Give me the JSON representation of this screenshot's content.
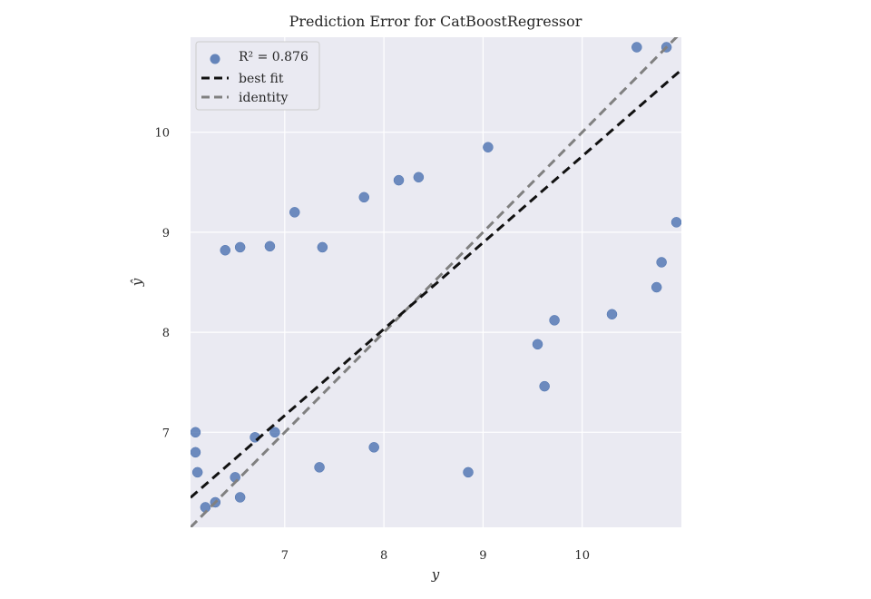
{
  "chart_data": {
    "type": "scatter",
    "title": "Prediction Error for CatBoostRegressor",
    "xlabel": "y",
    "ylabel": "ŷ",
    "xlim": [
      6.05,
      11.0
    ],
    "ylim": [
      6.05,
      10.95
    ],
    "xticks": [
      7,
      8,
      9,
      10
    ],
    "yticks": [
      7,
      8,
      9,
      10
    ],
    "grid": true,
    "legend_position": "top-left",
    "legend": [
      {
        "key": "points",
        "label": "R² = 0.876"
      },
      {
        "key": "best_fit",
        "label": "best fit"
      },
      {
        "key": "identity",
        "label": "identity"
      }
    ],
    "r2": 0.876,
    "best_fit": {
      "slope": 0.864,
      "intercept": 1.12
    },
    "identity": {
      "slope": 1.0,
      "intercept": 0.0
    },
    "colors": {
      "points": "#4c72b0",
      "best_fit": "#111111",
      "identity": "#808080",
      "background": "#eaeaf2",
      "grid": "#ffffff"
    },
    "series": [
      {
        "name": "points",
        "x": [
          6.4,
          6.55,
          6.85,
          7.1,
          7.38,
          7.8,
          8.15,
          8.35,
          9.55,
          9.62,
          9.72,
          10.3,
          10.75,
          10.8,
          10.95,
          8.85,
          7.35,
          7.9,
          6.55,
          6.1,
          6.1,
          6.12,
          6.2,
          6.3,
          6.5,
          6.7,
          6.9,
          9.05,
          10.55,
          10.85
        ],
        "y": [
          8.82,
          8.85,
          8.86,
          9.2,
          8.85,
          9.35,
          9.52,
          9.55,
          7.88,
          7.46,
          8.12,
          8.18,
          8.45,
          8.7,
          9.1,
          6.6,
          6.65,
          6.85,
          6.35,
          7.0,
          6.8,
          6.6,
          6.25,
          6.3,
          6.55,
          6.95,
          7.0,
          9.85,
          10.85,
          10.85
        ]
      }
    ]
  }
}
